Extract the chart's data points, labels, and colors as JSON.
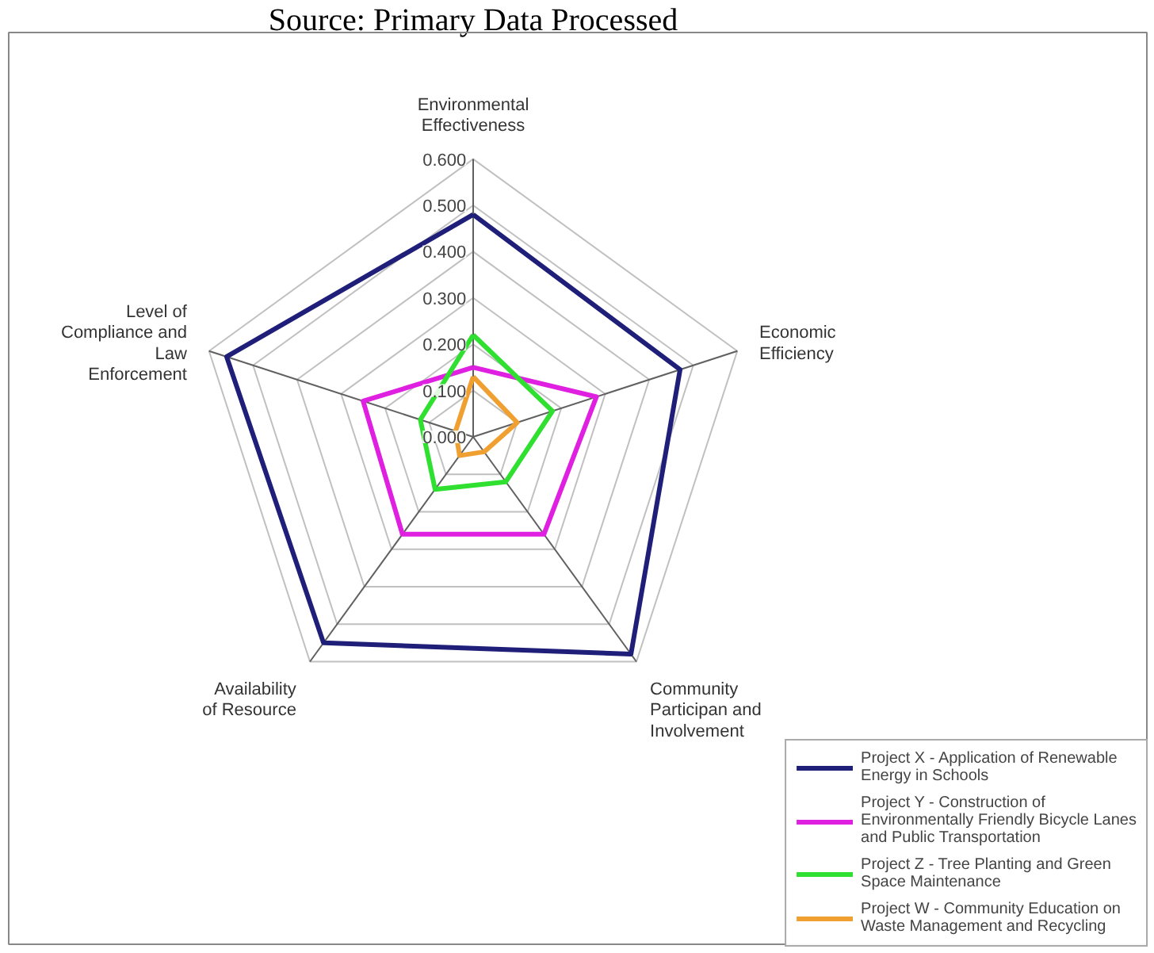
{
  "chart_data": {
    "type": "radar",
    "title": "Source: Primary Data Processed",
    "categories": [
      "Environmental Effectiveness",
      "Economic Efficiency",
      "Community Participan and Involvement",
      "Availability of Resource",
      "Level of Compliance and Law Enforcement"
    ],
    "ylim": [
      0,
      0.6
    ],
    "yticks": [
      {
        "value": 0,
        "label": "0.000"
      },
      {
        "value": 0.1,
        "label": "0.100"
      },
      {
        "value": 0.2,
        "label": "0.200"
      },
      {
        "value": 0.3,
        "label": "0.300"
      },
      {
        "value": 0.4,
        "label": "0.400"
      },
      {
        "value": 0.5,
        "label": "0.500"
      },
      {
        "value": 0.6,
        "label": "0.600"
      }
    ],
    "grid": true,
    "legend": "bottom right",
    "marker": "none",
    "line_style": "solid",
    "series": [
      {
        "name": "Project X - Application of Renewable Energy in Schools",
        "color": "#1f1f7a",
        "values": [
          0.48,
          0.47,
          0.58,
          0.55,
          0.56
        ]
      },
      {
        "name": "Project Y - Construction of Environmentally Friendly Bicycle Lanes and Public Transportation",
        "color": "#e020e0",
        "values": [
          0.15,
          0.28,
          0.26,
          0.26,
          0.25
        ]
      },
      {
        "name": "Project Z - Tree Planting and Green Space Maintenance",
        "color": "#30e030",
        "values": [
          0.22,
          0.18,
          0.12,
          0.14,
          0.12
        ]
      },
      {
        "name": "Project W - Community Education on Waste Management and Recycling",
        "color": "#f0a030",
        "values": [
          0.13,
          0.1,
          0.04,
          0.05,
          0.04
        ]
      }
    ]
  }
}
